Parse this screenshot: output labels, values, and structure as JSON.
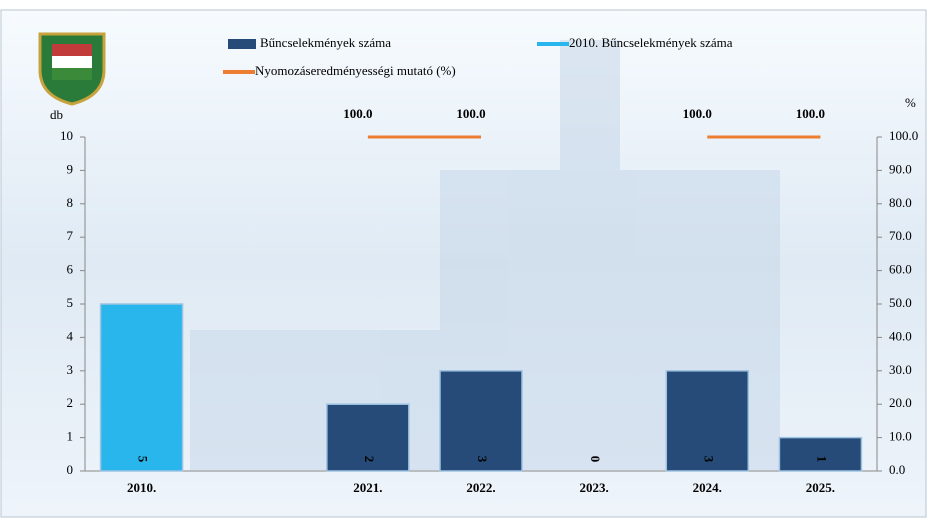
{
  "chart_data": {
    "type": "bar",
    "categories": [
      "2010.",
      null,
      "2021.",
      "2022.",
      "2023.",
      "2024.",
      "2025."
    ],
    "series": [
      {
        "name": "Bűncselekmények száma",
        "type": "bar",
        "color": "#264b78",
        "values": [
          null,
          null,
          2,
          3,
          0,
          3,
          1
        ]
      },
      {
        "name": "2010. Bűncselekmények száma",
        "type": "bar",
        "color": "#29b6ec",
        "values": [
          5,
          null,
          null,
          null,
          null,
          null,
          null
        ]
      },
      {
        "name": "Nyomozáseredményességi mutató (%)",
        "type": "line",
        "axis": "y2",
        "color": "#ed7d31",
        "values": [
          null,
          null,
          100,
          100,
          null,
          100,
          100
        ],
        "value_labels": [
          null,
          null,
          "100.0",
          "100.0",
          null,
          "100.0",
          "100.0"
        ]
      }
    ],
    "y_label": "db",
    "y2_label": "%",
    "ylim": [
      0,
      10
    ],
    "yticks": [
      0,
      1,
      2,
      3,
      4,
      5,
      6,
      7,
      8,
      9,
      10
    ],
    "y2lim": [
      0,
      100
    ],
    "y2ticks": [
      {
        "value": 0,
        "label": "0.0"
      },
      {
        "value": 10,
        "label": "10.0"
      },
      {
        "value": 20,
        "label": "20.0"
      },
      {
        "value": 30,
        "label": "30.0"
      },
      {
        "value": 40,
        "label": "40.0"
      },
      {
        "value": 50,
        "label": "50.0"
      },
      {
        "value": 60,
        "label": "60.0"
      },
      {
        "value": 70,
        "label": "70.0"
      },
      {
        "value": 80,
        "label": "80.0"
      },
      {
        "value": 90,
        "label": "90.0"
      },
      {
        "value": 100,
        "label": "100.0"
      }
    ]
  }
}
